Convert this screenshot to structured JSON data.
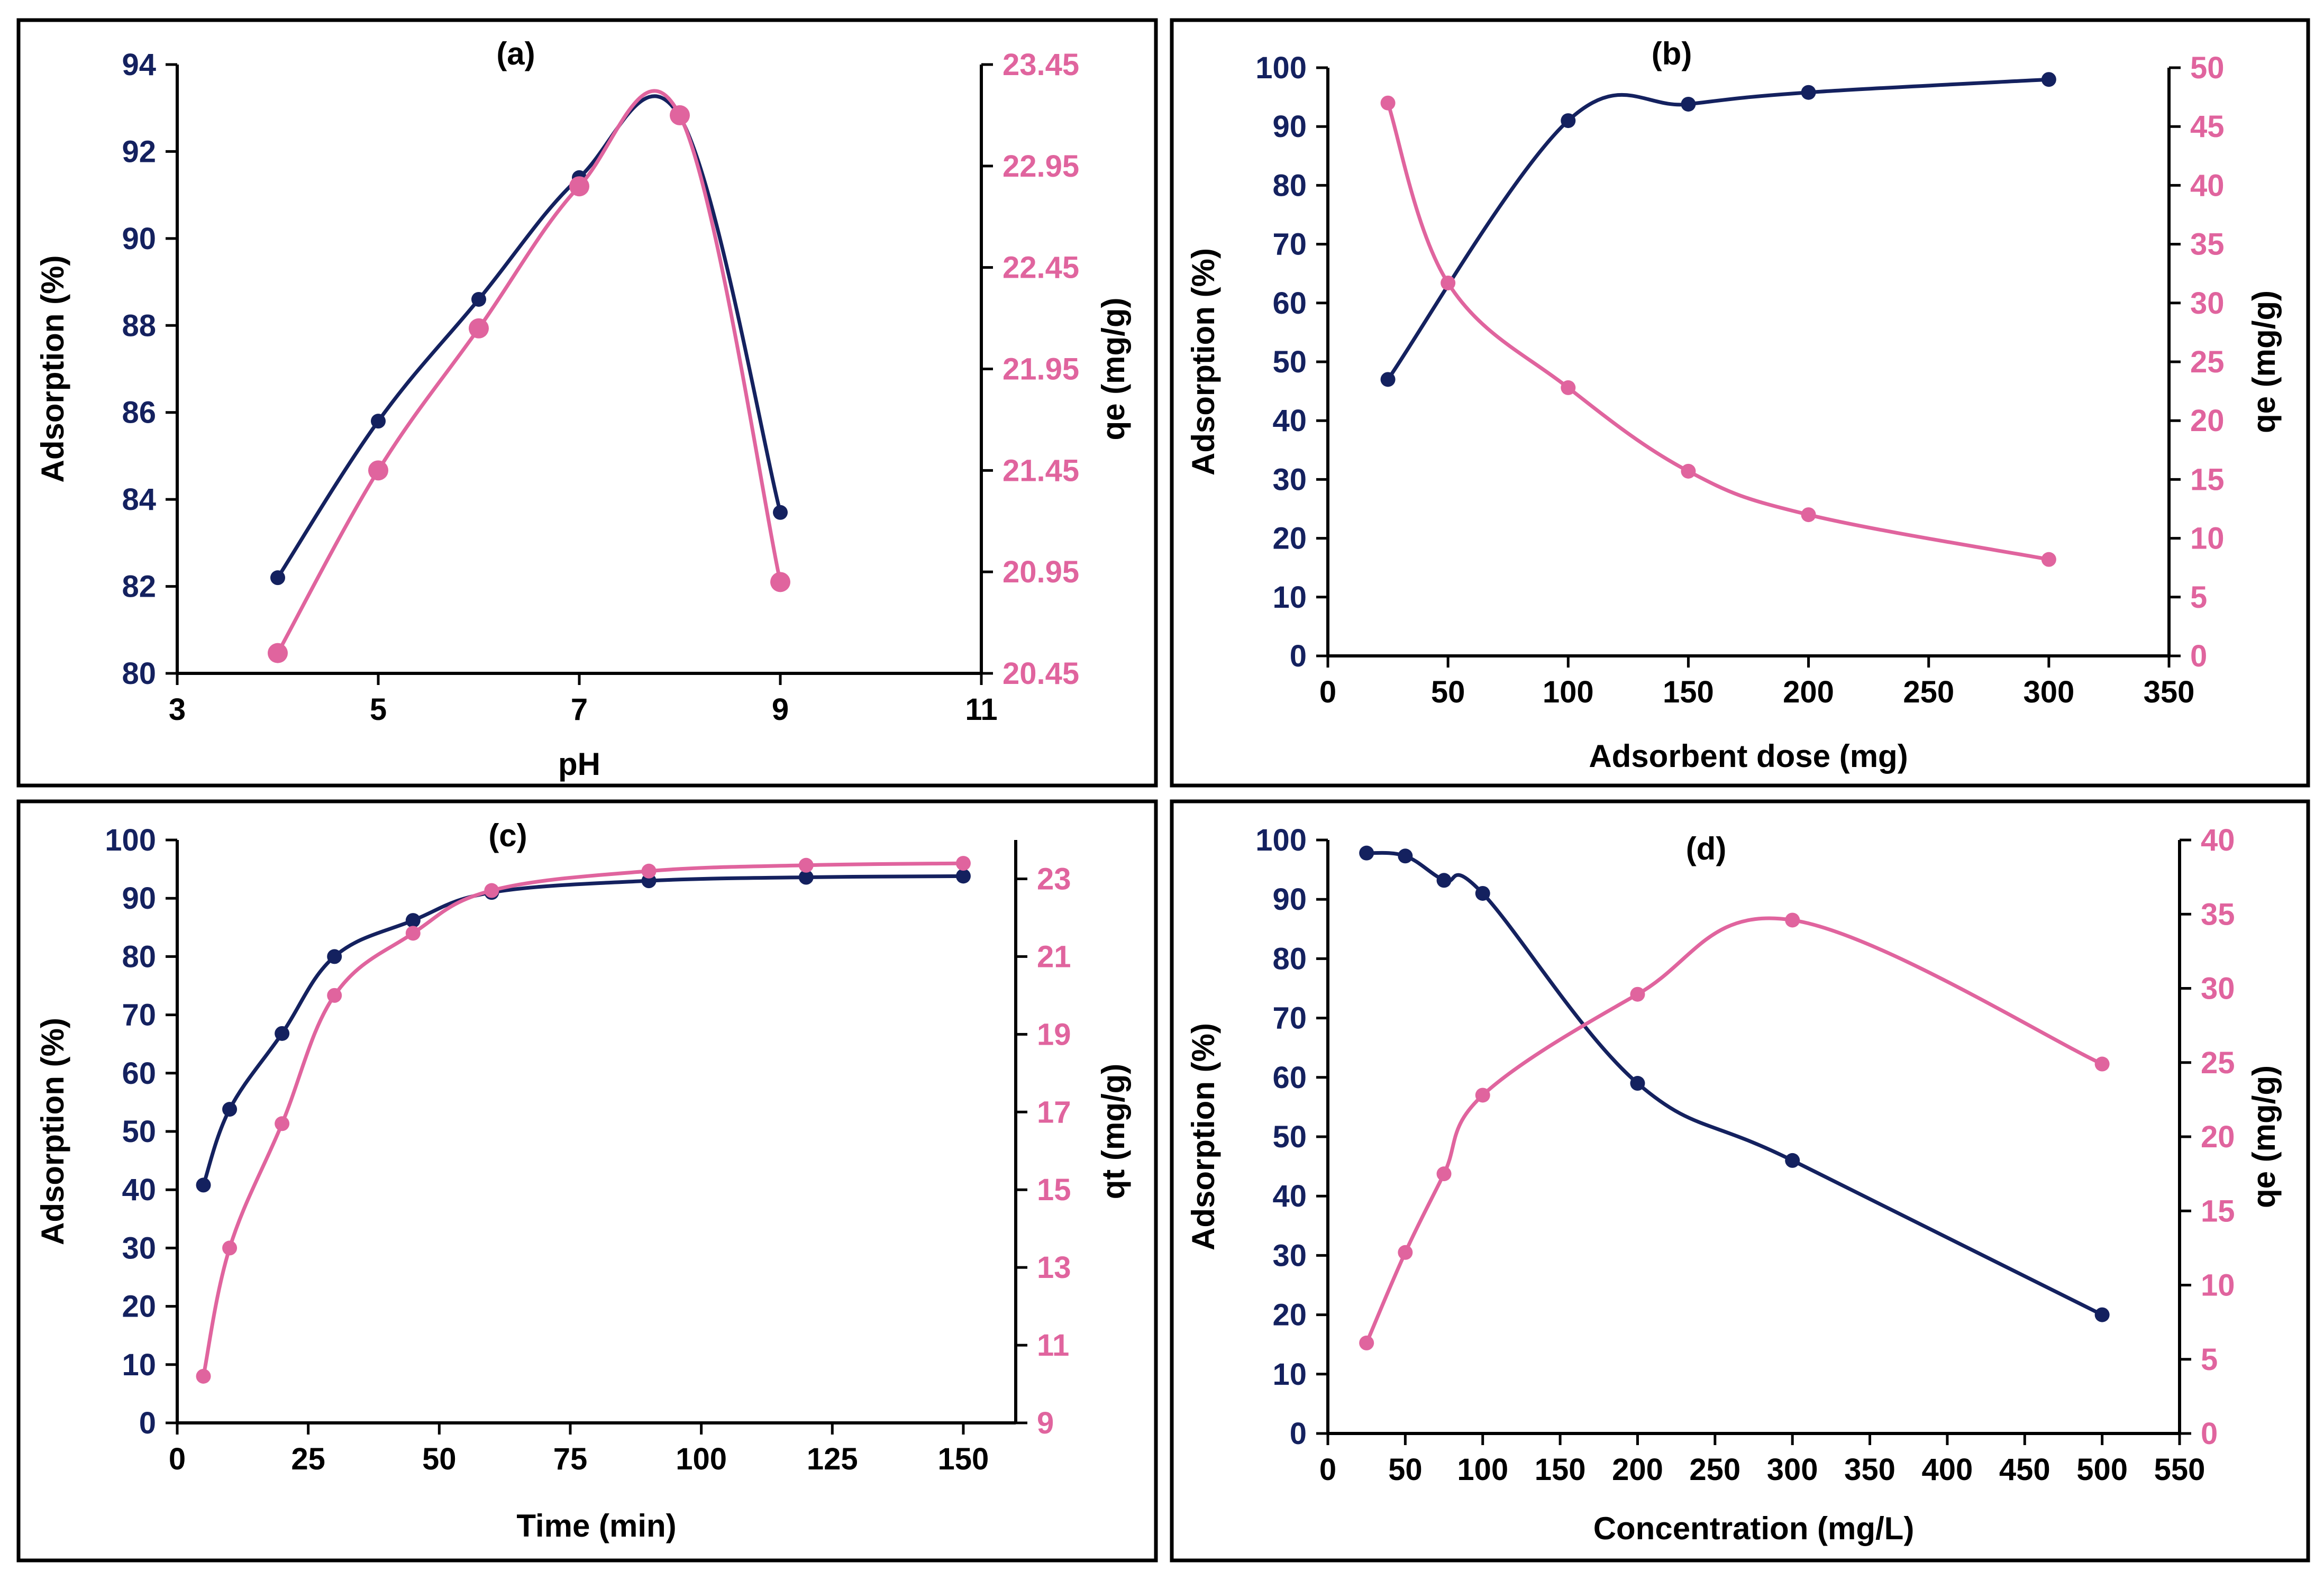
{
  "colors": {
    "left_series": "#14215f",
    "right_series": "#e0649e",
    "axis": "#000000",
    "frame": "#000000"
  },
  "chart_data": [
    {
      "id": "a",
      "type": "line",
      "panel_label": "(a)",
      "xlabel": "pH",
      "ylabel_left": "Adsorption (%)",
      "ylabel_right": "qe (mg/g)",
      "xlim": [
        3,
        11
      ],
      "xticks": [
        3,
        5,
        7,
        9,
        11
      ],
      "ylim_left": [
        80,
        94
      ],
      "yticks_left": [
        80,
        82,
        84,
        86,
        88,
        90,
        92,
        94
      ],
      "ylim_right": [
        20.45,
        23.45
      ],
      "yticks_right": [
        "20.45",
        "20.95",
        "21.45",
        "21.95",
        "22.45",
        "22.95",
        "23.45"
      ],
      "series": [
        {
          "name": "Adsorption",
          "axis": "left",
          "marker": "small",
          "x": [
            4,
            5,
            6,
            7,
            8,
            9
          ],
          "values": [
            82.2,
            85.8,
            88.6,
            91.4,
            92.8,
            83.7
          ]
        },
        {
          "name": "qe",
          "axis": "right",
          "marker": "large",
          "x": [
            4,
            5,
            6,
            7,
            8,
            9
          ],
          "values": [
            20.55,
            21.45,
            22.15,
            22.85,
            23.2,
            20.9
          ]
        }
      ]
    },
    {
      "id": "b",
      "type": "line",
      "panel_label": "(b)",
      "xlabel": "Adsorbent dose (mg)",
      "ylabel_left": "Adsorption (%)",
      "ylabel_right": "qe (mg/g)",
      "xlim": [
        0,
        350
      ],
      "xticks": [
        0,
        50,
        100,
        150,
        200,
        250,
        300,
        350
      ],
      "ylim_left": [
        0,
        100
      ],
      "yticks_left": [
        0,
        10,
        20,
        30,
        40,
        50,
        60,
        70,
        80,
        90,
        100
      ],
      "ylim_right": [
        0,
        50
      ],
      "yticks_right": [
        "0",
        "5",
        "10",
        "15",
        "20",
        "25",
        "30",
        "35",
        "40",
        "45",
        "50"
      ],
      "series": [
        {
          "name": "Adsorption",
          "axis": "left",
          "marker": "small",
          "x": [
            25,
            100,
            150,
            200,
            300
          ],
          "values": [
            47,
            91,
            93.8,
            95.8,
            98
          ]
        },
        {
          "name": "qe",
          "axis": "right",
          "marker": "small",
          "x": [
            25,
            50,
            100,
            150,
            200,
            300
          ],
          "values": [
            47,
            31.7,
            22.8,
            15.7,
            12,
            8.2
          ]
        }
      ]
    },
    {
      "id": "c",
      "type": "line",
      "panel_label": "(c)",
      "xlabel": "Time (min)",
      "ylabel_left": "Adsorption (%)",
      "ylabel_right": "qt (mg/g)",
      "xlim": [
        0,
        160
      ],
      "xticks": [
        0,
        25,
        50,
        75,
        100,
        125,
        150
      ],
      "ylim_left": [
        0,
        100
      ],
      "yticks_left": [
        0,
        10,
        20,
        30,
        40,
        50,
        60,
        70,
        80,
        90,
        100
      ],
      "ylim_right": [
        9,
        24
      ],
      "yticks_right": [
        "9",
        "11",
        "13",
        "15",
        "17",
        "19",
        "21",
        "23"
      ],
      "series": [
        {
          "name": "Adsorption",
          "axis": "left",
          "marker": "small",
          "x": [
            5,
            10,
            20,
            30,
            45,
            60,
            90,
            120,
            150
          ],
          "values": [
            40.8,
            53.8,
            66.8,
            80,
            86.2,
            91,
            93,
            93.6,
            93.8
          ]
        },
        {
          "name": "qt",
          "axis": "right",
          "marker": "small",
          "x": [
            5,
            10,
            20,
            30,
            45,
            60,
            90,
            120,
            150
          ],
          "values": [
            10.2,
            13.5,
            16.7,
            20,
            21.6,
            22.7,
            23.2,
            23.35,
            23.4
          ]
        }
      ]
    },
    {
      "id": "d",
      "type": "line",
      "panel_label": "(d)",
      "xlabel": "Concentration (mg/L)",
      "ylabel_left": "Adsorption (%)",
      "ylabel_right": "qe (mg/g)",
      "xlim": [
        0,
        550
      ],
      "xticks": [
        0,
        50,
        100,
        150,
        200,
        250,
        300,
        350,
        400,
        450,
        500,
        550
      ],
      "ylim_left": [
        0,
        100
      ],
      "yticks_left": [
        0,
        10,
        20,
        30,
        40,
        50,
        60,
        70,
        80,
        90,
        100
      ],
      "ylim_right": [
        0,
        40
      ],
      "yticks_right": [
        "0",
        "5",
        "10",
        "15",
        "20",
        "25",
        "30",
        "35",
        "40"
      ],
      "series": [
        {
          "name": "Adsorption",
          "axis": "left",
          "marker": "small",
          "x": [
            25,
            50,
            75,
            100,
            200,
            300,
            500
          ],
          "values": [
            97.8,
            97.3,
            93.2,
            91,
            59,
            46,
            20
          ]
        },
        {
          "name": "qe",
          "axis": "right",
          "marker": "small",
          "x": [
            25,
            50,
            75,
            100,
            200,
            300,
            500
          ],
          "values": [
            6.1,
            12.2,
            17.5,
            22.8,
            29.6,
            34.6,
            24.9
          ]
        }
      ]
    }
  ]
}
